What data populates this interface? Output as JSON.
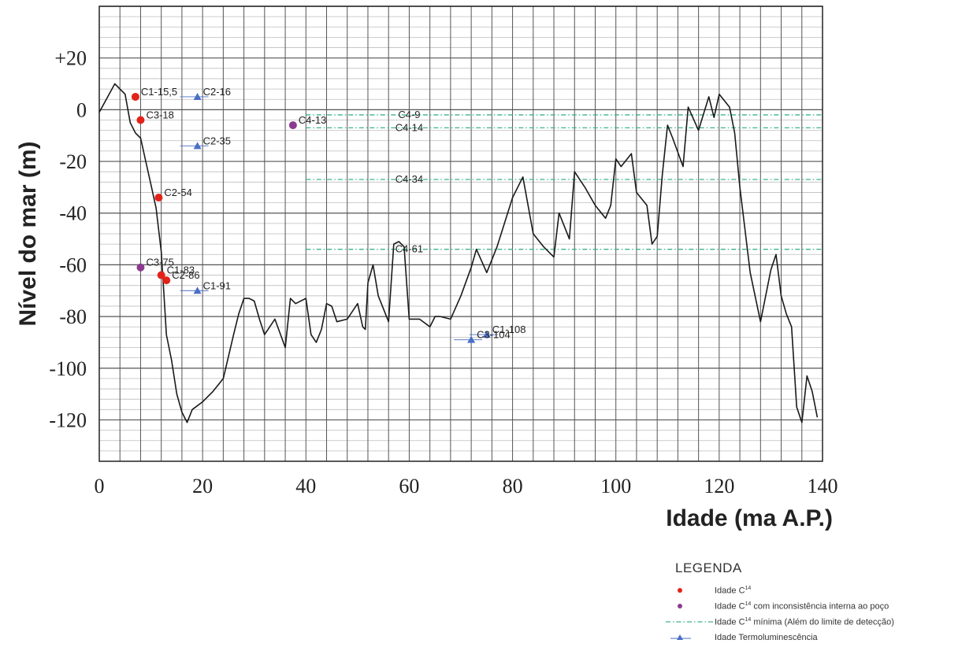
{
  "chart_data": {
    "type": "line",
    "xlabel": "Idade (ma A.P.)",
    "ylabel": "Nível do mar (m)",
    "xlim": [
      0,
      140
    ],
    "ylim": [
      -136,
      40
    ],
    "x_ticks": [
      0,
      20,
      40,
      60,
      80,
      100,
      120,
      140
    ],
    "y_ticks": [
      20,
      0,
      -20,
      -40,
      -60,
      -80,
      -100,
      -120
    ],
    "y_tick_labels": [
      "+20",
      "0",
      "-20",
      "-40",
      "-60",
      "-80",
      "-100",
      "-120"
    ],
    "grid": true,
    "series": [
      {
        "kind": "curve",
        "color": "#1a1a1a",
        "points": [
          [
            0,
            -1
          ],
          [
            3,
            10
          ],
          [
            5,
            6
          ],
          [
            6,
            -5
          ],
          [
            7,
            -9
          ],
          [
            8,
            -11
          ],
          [
            9,
            -20
          ],
          [
            10,
            -29
          ],
          [
            11,
            -38
          ],
          [
            12,
            -55
          ],
          [
            12.5,
            -71
          ],
          [
            13,
            -87
          ],
          [
            14,
            -97
          ],
          [
            15,
            -110
          ],
          [
            16,
            -117
          ],
          [
            17,
            -121
          ],
          [
            18,
            -116
          ],
          [
            20,
            -113
          ],
          [
            22,
            -109
          ],
          [
            24,
            -104
          ],
          [
            26,
            -87
          ],
          [
            27,
            -79
          ],
          [
            28,
            -73
          ],
          [
            29,
            -73
          ],
          [
            30,
            -74
          ],
          [
            31,
            -81
          ],
          [
            32,
            -87
          ],
          [
            34,
            -81
          ],
          [
            36,
            -92
          ],
          [
            37,
            -73
          ],
          [
            38,
            -75
          ],
          [
            40,
            -73
          ],
          [
            41,
            -87
          ],
          [
            42,
            -90
          ],
          [
            43,
            -85
          ],
          [
            44,
            -75
          ],
          [
            45,
            -76
          ],
          [
            46,
            -82
          ],
          [
            48,
            -81
          ],
          [
            50,
            -75
          ],
          [
            51,
            -84
          ],
          [
            51.5,
            -85
          ],
          [
            52,
            -67
          ],
          [
            53,
            -60
          ],
          [
            54,
            -72
          ],
          [
            56,
            -82
          ],
          [
            57,
            -52
          ],
          [
            58,
            -51
          ],
          [
            59,
            -53
          ],
          [
            60,
            -81
          ],
          [
            62,
            -81
          ],
          [
            64,
            -84
          ],
          [
            65,
            -80
          ],
          [
            66,
            -80
          ],
          [
            68,
            -81
          ],
          [
            70,
            -72
          ],
          [
            72,
            -61
          ],
          [
            73,
            -54
          ],
          [
            75,
            -63
          ],
          [
            77,
            -53
          ],
          [
            80,
            -34
          ],
          [
            82,
            -26
          ],
          [
            84,
            -48
          ],
          [
            86,
            -53
          ],
          [
            88,
            -57
          ],
          [
            89,
            -40
          ],
          [
            91,
            -50
          ],
          [
            92,
            -24
          ],
          [
            94,
            -30
          ],
          [
            96,
            -37
          ],
          [
            98,
            -42
          ],
          [
            99,
            -37
          ],
          [
            100,
            -19
          ],
          [
            101,
            -22
          ],
          [
            103,
            -17
          ],
          [
            104,
            -32
          ],
          [
            106,
            -37
          ],
          [
            107,
            -52
          ],
          [
            108,
            -49
          ],
          [
            109,
            -25
          ],
          [
            110,
            -6
          ],
          [
            111,
            -11
          ],
          [
            113,
            -22
          ],
          [
            114,
            1
          ],
          [
            116,
            -8
          ],
          [
            118,
            5
          ],
          [
            119,
            -3
          ],
          [
            120,
            6
          ],
          [
            122,
            1
          ],
          [
            123,
            -9
          ],
          [
            124,
            -30
          ],
          [
            126,
            -63
          ],
          [
            128,
            -82
          ],
          [
            130,
            -62
          ],
          [
            131,
            -56
          ],
          [
            132,
            -72
          ],
          [
            133,
            -79
          ],
          [
            134,
            -84
          ],
          [
            135,
            -115
          ],
          [
            136,
            -121
          ],
          [
            137,
            -103
          ],
          [
            138,
            -109
          ],
          [
            139,
            -119
          ]
        ]
      },
      {
        "name": "Idade C14",
        "kind": "points",
        "marker": "circle",
        "color": "#e2231a",
        "points": [
          {
            "label": "C1-15,5",
            "x": 7,
            "y": 5
          },
          {
            "label": "C3-18",
            "x": 8,
            "y": -4
          },
          {
            "label": "C2-54",
            "x": 11.5,
            "y": -34
          },
          {
            "label": "C1-83",
            "x": 12,
            "y": -64
          },
          {
            "label": "C2-86",
            "x": 13,
            "y": -66
          }
        ]
      },
      {
        "name": "Idade C14 com inconsistência interna ao poço",
        "kind": "points",
        "marker": "circle",
        "color": "#8b3a8f",
        "points": [
          {
            "label": "C3-75",
            "x": 8,
            "y": -61
          },
          {
            "label": "C4-13",
            "x": 37.5,
            "y": -6
          }
        ]
      },
      {
        "name": "Idade C14 mínima (Além do limite de detecção)",
        "kind": "hlines",
        "color": "#3cb38a",
        "lines": [
          {
            "label": "C4-9",
            "y": -2
          },
          {
            "label": "C4-14",
            "y": -7
          },
          {
            "label": "C4-34",
            "y": -27
          },
          {
            "label": "C4-61",
            "y": -54
          }
        ]
      },
      {
        "name": "Idade Termoluminescência",
        "kind": "points",
        "marker": "triangle",
        "color": "#4a6fc4",
        "points": [
          {
            "label": "C2-16",
            "x": 19,
            "y": 5
          },
          {
            "label": "C2-35",
            "x": 19,
            "y": -14
          },
          {
            "label": "C1-91",
            "x": 19,
            "y": -70
          },
          {
            "label": "C1-108",
            "x": 75,
            "y": -87
          },
          {
            "label": "C3-104",
            "x": 72,
            "y": -89
          }
        ]
      }
    ]
  },
  "legend": {
    "title": "LEGENDA",
    "items": [
      {
        "kind": "dot",
        "color": "#e2231a",
        "prefix": "Idade C",
        "sup": "14",
        "suffix": ""
      },
      {
        "kind": "dot",
        "color": "#8b3a8f",
        "prefix": "Idade C",
        "sup": "14",
        "suffix": " com inconsistência interna ao poço"
      },
      {
        "kind": "dash",
        "color": "#3cb38a",
        "prefix": "Idade C",
        "sup": "14",
        "suffix": " mínima (Além do limite de detecção)"
      },
      {
        "kind": "triangle",
        "color": "#4a6fc4",
        "prefix": "Idade Termoluminescência",
        "sup": "",
        "suffix": ""
      }
    ]
  }
}
